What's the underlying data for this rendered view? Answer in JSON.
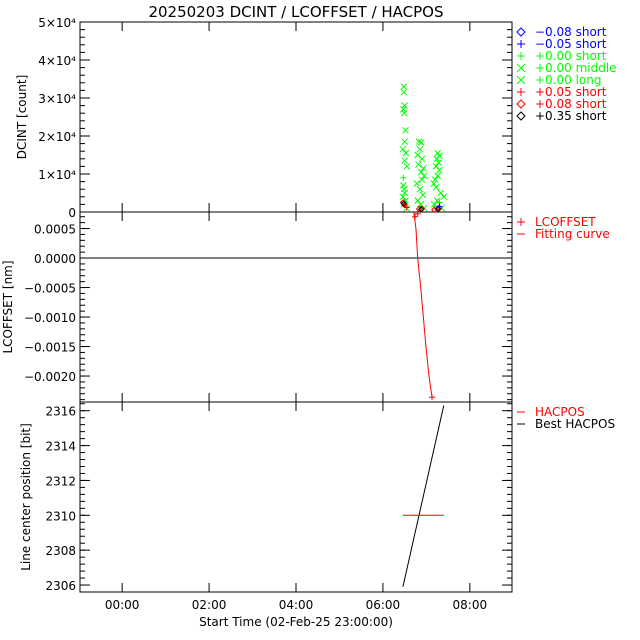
{
  "title": "20250203 DCINT / LCOFFSET / HACPOS",
  "colors": {
    "blue": "#0000ff",
    "green": "#00ff00",
    "red": "#ff0000",
    "black": "#000000"
  },
  "chart_data": [
    {
      "type": "scatter",
      "panel": "top",
      "ylabel": "DCINT [count]",
      "xlim": [
        -0.97,
        8.97
      ],
      "ylim": [
        0,
        50000
      ],
      "yticks": [
        0,
        10000,
        20000,
        30000,
        40000,
        50000
      ],
      "ytick_labels": [
        "0",
        "1×10⁴",
        "2×10⁴",
        "3×10⁴",
        "4×10⁴",
        "5×10⁴"
      ],
      "legend": [
        {
          "symbol": "diamond",
          "color": "#0000ff",
          "label": "−0.08 short"
        },
        {
          "symbol": "plus",
          "color": "#0000ff",
          "label": "−0.05 short"
        },
        {
          "symbol": "plus",
          "color": "#00ff00",
          "label": "+0.00 short"
        },
        {
          "symbol": "x",
          "color": "#00ff00",
          "label": "+0.00 middle"
        },
        {
          "symbol": "x",
          "color": "#00ff00",
          "label": "+0.00 long"
        },
        {
          "symbol": "plus",
          "color": "#ff0000",
          "label": "+0.05 short"
        },
        {
          "symbol": "diamond",
          "color": "#ff0000",
          "label": "+0.08 short"
        },
        {
          "symbol": "diamond",
          "color": "#000000",
          "label": "+0.35 short"
        }
      ],
      "series": [
        {
          "name": "+0.00 middle/long",
          "symbol": "x",
          "color": "#00ff00",
          "points": [
            [
              6.48,
              33000
            ],
            [
              6.48,
              31500
            ],
            [
              6.5,
              28000
            ],
            [
              6.47,
              27000
            ],
            [
              6.49,
              26000
            ],
            [
              6.52,
              21500
            ],
            [
              6.5,
              18500
            ],
            [
              6.46,
              16500
            ],
            [
              6.53,
              15500
            ],
            [
              6.5,
              13500
            ],
            [
              6.55,
              12000
            ],
            [
              6.47,
              7000
            ],
            [
              6.49,
              6000
            ],
            [
              6.5,
              5000
            ],
            [
              6.46,
              4000
            ],
            [
              6.52,
              3000
            ],
            [
              6.48,
              2000
            ],
            [
              6.55,
              1000
            ],
            [
              6.83,
              18500
            ],
            [
              6.88,
              18300
            ],
            [
              6.85,
              16500
            ],
            [
              6.8,
              15000
            ],
            [
              6.9,
              14000
            ],
            [
              6.82,
              12500
            ],
            [
              6.93,
              11500
            ],
            [
              6.88,
              10500
            ],
            [
              6.95,
              9500
            ],
            [
              6.9,
              8500
            ],
            [
              6.78,
              7500
            ],
            [
              6.85,
              6000
            ],
            [
              6.92,
              4500
            ],
            [
              6.8,
              3000
            ],
            [
              6.87,
              2000
            ],
            [
              6.95,
              1000
            ],
            [
              7.26,
              15500
            ],
            [
              7.3,
              14800
            ],
            [
              7.24,
              14000
            ],
            [
              7.28,
              13000
            ],
            [
              7.22,
              12000
            ],
            [
              7.3,
              11000
            ],
            [
              7.26,
              9500
            ],
            [
              7.2,
              8500
            ],
            [
              7.17,
              7500
            ],
            [
              7.22,
              6500
            ],
            [
              7.33,
              5000
            ],
            [
              7.4,
              4000
            ],
            [
              7.25,
              3000
            ],
            [
              7.18,
              2000
            ],
            [
              7.35,
              1000
            ]
          ]
        },
        {
          "name": "+0.00 short",
          "symbol": "plus",
          "color": "#00ff00",
          "points": [
            [
              6.47,
              9000
            ],
            [
              6.5,
              2500
            ],
            [
              6.85,
              1500
            ],
            [
              7.2,
              1500
            ],
            [
              7.3,
              2500
            ]
          ]
        },
        {
          "name": "+0.05 short",
          "symbol": "plus",
          "color": "#ff0000",
          "points": [
            [
              6.5,
              2000
            ],
            [
              6.55,
              1200
            ],
            [
              6.8,
              -500
            ],
            [
              7.25,
              800
            ]
          ]
        },
        {
          "name": "+0.08 short",
          "symbol": "diamond",
          "color": "#ff0000",
          "points": [
            [
              6.46,
              2500
            ],
            [
              6.5,
              1800
            ],
            [
              6.83,
              800
            ],
            [
              6.9,
              900
            ],
            [
              7.18,
              600
            ],
            [
              7.3,
              1000
            ]
          ]
        },
        {
          "name": "+0.35 short",
          "symbol": "diamond",
          "color": "#000000",
          "points": [
            [
              6.48,
              2200
            ],
            [
              6.88,
              700
            ],
            [
              7.27,
              800
            ]
          ]
        },
        {
          "name": "−0.05 short",
          "symbol": "plus",
          "color": "#0000ff",
          "points": [
            [
              7.3,
              1500
            ]
          ]
        }
      ]
    },
    {
      "type": "line",
      "panel": "middle",
      "ylabel": "LCOFFSET [nm]",
      "xlim": [
        -0.97,
        8.97
      ],
      "ylim": [
        -0.00244,
        0.00078
      ],
      "yticks": [
        0.0005,
        0.0,
        -0.0005,
        -0.001,
        -0.0015,
        -0.002
      ],
      "ytick_labels": [
        "0.0005",
        "0.0000",
        "−0.0005",
        "−0.0010",
        "−0.0015",
        "−0.0020"
      ],
      "zero_line": 0,
      "legend": [
        {
          "symbol": "plus",
          "color": "#ff0000",
          "label": "LCOFFSET"
        },
        {
          "symbol": "dash",
          "color": "#ff0000",
          "label": "Fitting curve"
        }
      ],
      "lcoffset_points": [
        [
          6.74,
          0.0007
        ],
        [
          7.13,
          -0.00236
        ]
      ],
      "fitting_curve": [
        [
          6.71,
          0.00078
        ],
        [
          6.76,
          0.0005
        ],
        [
          6.8,
          0.0
        ],
        [
          6.87,
          -0.0005
        ],
        [
          6.93,
          -0.001
        ],
        [
          6.99,
          -0.0015
        ],
        [
          7.06,
          -0.002
        ],
        [
          7.13,
          -0.00236
        ]
      ]
    },
    {
      "type": "line",
      "panel": "bottom",
      "ylabel": "Line center position [bit]",
      "xlabel": "Start Time (02-Feb-25 23:00:00)",
      "xlim": [
        -0.97,
        8.97
      ],
      "ylim": [
        2305.6,
        2316.5
      ],
      "yticks": [
        2306,
        2308,
        2310,
        2312,
        2314,
        2316
      ],
      "ytick_labels": [
        "2306",
        "2308",
        "2310",
        "2312",
        "2314",
        "2316"
      ],
      "xticks": [
        0,
        2,
        4,
        6,
        8
      ],
      "xtick_labels": [
        "00:00",
        "02:00",
        "04:00",
        "06:00",
        "08:00"
      ],
      "legend": [
        {
          "symbol": "dash",
          "color": "#ff0000",
          "label": "HACPOS"
        },
        {
          "symbol": "dash",
          "color": "#000000",
          "label": "Best HACPOS"
        }
      ],
      "hacpos": [
        [
          6.46,
          2310
        ],
        [
          7.4,
          2310
        ]
      ],
      "best_hacpos": [
        [
          6.46,
          2305.9
        ],
        [
          7.4,
          2316.3
        ]
      ]
    }
  ]
}
